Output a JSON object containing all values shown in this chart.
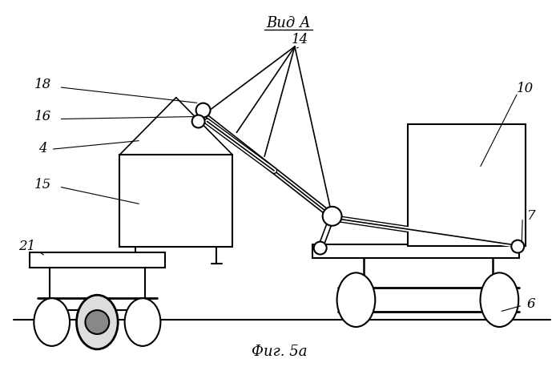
{
  "title": "Вид А",
  "caption": "Фиг. 5а",
  "bg_color": "#ffffff",
  "line_color": "#000000",
  "figsize": [
    6.99,
    4.73
  ],
  "dpi": 100
}
